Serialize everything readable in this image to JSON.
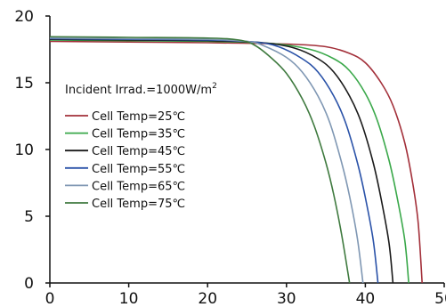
{
  "chart_data": {
    "type": "line",
    "title": "",
    "xlabel": "",
    "ylabel": "",
    "xlim": [
      0,
      50
    ],
    "ylim": [
      0,
      20
    ],
    "x_ticks": [
      0,
      10,
      20,
      30,
      40,
      50
    ],
    "y_ticks": [
      0,
      5,
      10,
      15,
      20
    ],
    "x_tick_labels": [
      "0",
      "10",
      "20",
      "30",
      "40",
      "50"
    ],
    "y_tick_labels": [
      "0",
      "5",
      "10",
      "15",
      "20"
    ],
    "grid": false,
    "annotation": {
      "prefix": "Incident Irrad.=1000W/m",
      "superscript": "2"
    },
    "legend_position": "left",
    "series": [
      {
        "name": "Cell Temp=25℃",
        "color": "#a3303a",
        "points": [
          [
            0,
            18.1
          ],
          [
            10,
            18.05
          ],
          [
            20,
            18.0
          ],
          [
            30,
            17.9
          ],
          [
            35,
            17.7
          ],
          [
            38,
            17.2
          ],
          [
            40,
            16.5
          ],
          [
            42,
            15.0
          ],
          [
            43.5,
            13.3
          ],
          [
            45,
            10.5
          ],
          [
            46,
            7.5
          ],
          [
            46.7,
            4.5
          ],
          [
            47.2,
            0
          ]
        ]
      },
      {
        "name": "Cell Temp=35℃",
        "color": "#3aa84a",
        "points": [
          [
            0,
            18.2
          ],
          [
            10,
            18.15
          ],
          [
            20,
            18.1
          ],
          [
            28,
            17.95
          ],
          [
            33,
            17.5
          ],
          [
            36,
            16.8
          ],
          [
            38,
            15.9
          ],
          [
            40,
            14.2
          ],
          [
            41.5,
            12.2
          ],
          [
            43,
            9.2
          ],
          [
            44,
            6.5
          ],
          [
            45,
            3.2
          ],
          [
            45.5,
            0
          ]
        ]
      },
      {
        "name": "Cell Temp=45℃",
        "color": "#1a1a1a",
        "points": [
          [
            0,
            18.25
          ],
          [
            10,
            18.2
          ],
          [
            20,
            18.15
          ],
          [
            27,
            18.0
          ],
          [
            31,
            17.6
          ],
          [
            34,
            16.8
          ],
          [
            36,
            15.8
          ],
          [
            38,
            14.0
          ],
          [
            39.5,
            12.0
          ],
          [
            41,
            9.0
          ],
          [
            42,
            6.3
          ],
          [
            43,
            3.0
          ],
          [
            43.5,
            0
          ]
        ]
      },
      {
        "name": "Cell Temp=55℃",
        "color": "#2a52a8",
        "points": [
          [
            0,
            18.3
          ],
          [
            10,
            18.25
          ],
          [
            20,
            18.2
          ],
          [
            26,
            18.05
          ],
          [
            29,
            17.7
          ],
          [
            32,
            16.8
          ],
          [
            34,
            15.8
          ],
          [
            36,
            14.0
          ],
          [
            37.5,
            12.0
          ],
          [
            39,
            9.0
          ],
          [
            40,
            6.4
          ],
          [
            41,
            3.2
          ],
          [
            41.6,
            0
          ]
        ]
      },
      {
        "name": "Cell Temp=65℃",
        "color": "#7f97b3",
        "points": [
          [
            0,
            18.35
          ],
          [
            10,
            18.3
          ],
          [
            20,
            18.25
          ],
          [
            25,
            18.1
          ],
          [
            27,
            17.8
          ],
          [
            30,
            16.9
          ],
          [
            32,
            15.8
          ],
          [
            34,
            14.0
          ],
          [
            35.5,
            12.0
          ],
          [
            37,
            9.0
          ],
          [
            38,
            6.5
          ],
          [
            39,
            3.3
          ],
          [
            39.7,
            0
          ]
        ]
      },
      {
        "name": "Cell Temp=75℃",
        "color": "#3f7a3f",
        "points": [
          [
            0,
            18.45
          ],
          [
            10,
            18.4
          ],
          [
            20,
            18.35
          ],
          [
            24,
            18.2
          ],
          [
            26,
            17.8
          ],
          [
            28,
            16.9
          ],
          [
            30,
            15.7
          ],
          [
            32,
            13.8
          ],
          [
            33.5,
            11.8
          ],
          [
            35,
            9.0
          ],
          [
            36,
            6.6
          ],
          [
            37,
            3.6
          ],
          [
            38,
            0
          ]
        ]
      }
    ]
  }
}
